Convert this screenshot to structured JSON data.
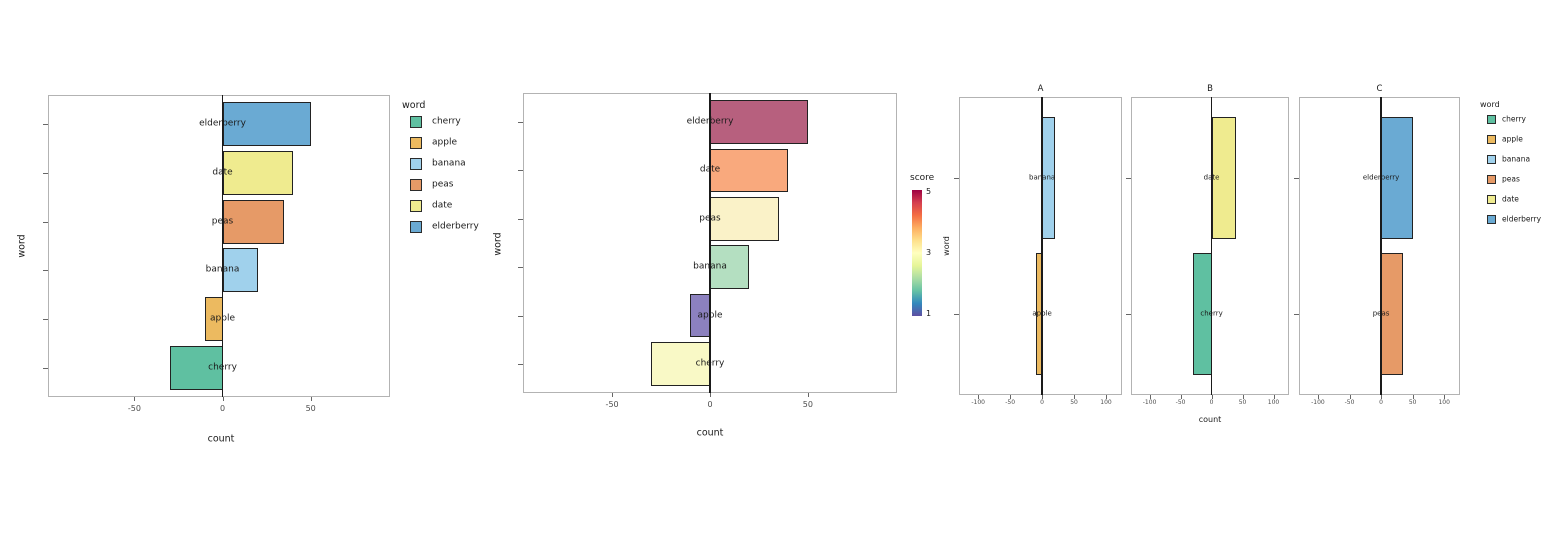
{
  "figure": {
    "background": "#ffffff"
  },
  "palette": {
    "cherry": "#5fc0a1",
    "apple": "#ecba60",
    "banana": "#a0d1ec",
    "peas": "#e69a67",
    "date": "#efeb8f",
    "elderberry": "#6aaad3"
  },
  "chart_data": [
    {
      "type": "bar",
      "orientation": "horizontal",
      "title": "",
      "xlabel": "count",
      "ylabel": "word",
      "xlim": [
        -99,
        95
      ],
      "xticks": [
        -50,
        0,
        50
      ],
      "grid": false,
      "legend_position": "right",
      "legend": {
        "title": "word",
        "items": [
          {
            "label": "cherry",
            "color": "#5fc0a1"
          },
          {
            "label": "apple",
            "color": "#ecba60"
          },
          {
            "label": "banana",
            "color": "#a0d1ec"
          },
          {
            "label": "peas",
            "color": "#e69a67"
          },
          {
            "label": "date",
            "color": "#efeb8f"
          },
          {
            "label": "elderberry",
            "color": "#6aaad3"
          }
        ]
      },
      "panels": [
        {
          "title": "",
          "categories": [
            "elderberry",
            "date",
            "peas",
            "banana",
            "apple",
            "cherry"
          ],
          "values": [
            50,
            40,
            35,
            20,
            -10,
            -30
          ],
          "colors": [
            "#6aaad3",
            "#efeb8f",
            "#e69a67",
            "#a0d1ec",
            "#ecba60",
            "#5fc0a1"
          ]
        }
      ]
    },
    {
      "type": "bar",
      "orientation": "horizontal",
      "title": "",
      "xlabel": "count",
      "ylabel": "word",
      "xlim": [
        -95.5,
        95.5
      ],
      "xticks": [
        -50,
        0,
        50
      ],
      "grid": false,
      "colorbar": {
        "title": "score",
        "ticks": [
          5,
          3,
          1
        ],
        "top_value": 5,
        "bottom_value": 1,
        "gradient_top_to_bottom": [
          "#9e0142",
          "#d53e4f",
          "#f46d43",
          "#fdae61",
          "#fee08b",
          "#ffffbf",
          "#e6f598",
          "#abdda4",
          "#66c2a5",
          "#3288bd",
          "#5e4fa2"
        ]
      },
      "panels": [
        {
          "title": "",
          "categories": [
            "elderberry",
            "date",
            "peas",
            "banana",
            "apple",
            "cherry"
          ],
          "values": [
            50,
            40,
            35,
            20,
            -10,
            -30
          ],
          "scores": [
            5,
            4,
            3,
            2.5,
            1,
            3
          ],
          "colors": [
            "#b7607e",
            "#f9a97d",
            "#faf2c8",
            "#b4dfc1",
            "#8c81bf",
            "#f9f9c6"
          ]
        }
      ]
    },
    {
      "type": "bar",
      "orientation": "horizontal",
      "faceted": true,
      "title": "",
      "xlabel": "count",
      "ylabel": "word",
      "xlim": [
        -130,
        125
      ],
      "xticks": [
        -100,
        -50,
        0,
        50,
        100
      ],
      "grid": false,
      "legend_position": "right",
      "legend": {
        "title": "word",
        "items": [
          {
            "label": "cherry",
            "color": "#5fc0a1"
          },
          {
            "label": "apple",
            "color": "#ecba60"
          },
          {
            "label": "banana",
            "color": "#a0d1ec"
          },
          {
            "label": "peas",
            "color": "#e69a67"
          },
          {
            "label": "date",
            "color": "#efeb8f"
          },
          {
            "label": "elderberry",
            "color": "#6aaad3"
          }
        ]
      },
      "panels": [
        {
          "title": "A",
          "categories": [
            "banana",
            "apple"
          ],
          "values": [
            20,
            -10
          ],
          "colors": [
            "#a0d1ec",
            "#ecba60"
          ]
        },
        {
          "title": "B",
          "categories": [
            "date",
            "cherry"
          ],
          "values": [
            40,
            -30
          ],
          "colors": [
            "#efeb8f",
            "#5fc0a1"
          ]
        },
        {
          "title": "C",
          "categories": [
            "elderberry",
            "peas"
          ],
          "values": [
            50,
            35
          ],
          "colors": [
            "#6aaad3",
            "#e69a67"
          ]
        }
      ]
    }
  ]
}
